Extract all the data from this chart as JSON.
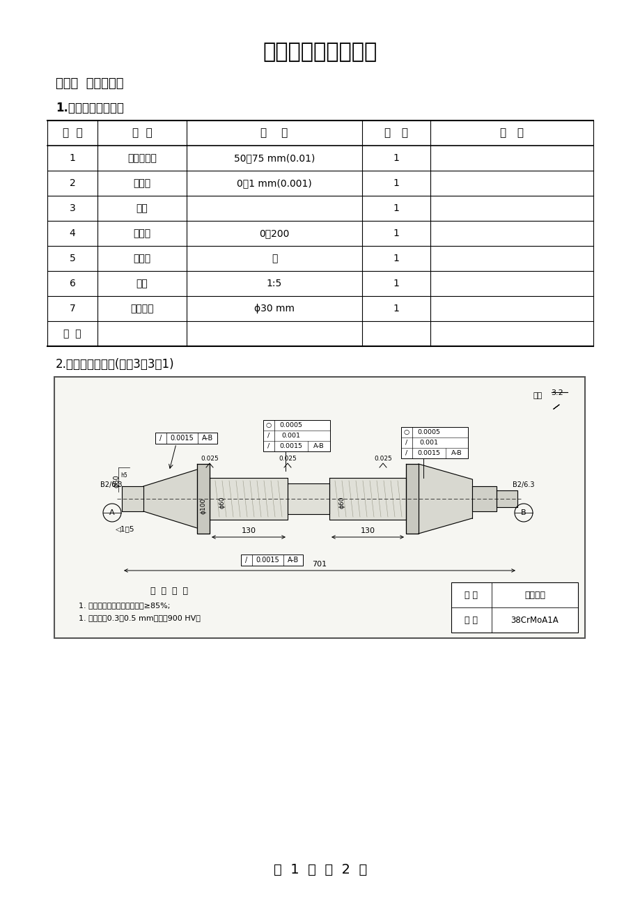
{
  "title": "高级磨床工技能试卷",
  "subject_label": "题目：  磨精密主轴",
  "section1_title": "1.工、量、刃具清单",
  "table_headers": [
    "序  号",
    "名  称",
    "规    格",
    "数   量",
    "备   注"
  ],
  "table_rows": [
    [
      "1",
      "外径百分尺",
      "50～75 mm(0.01)",
      "1",
      ""
    ],
    [
      "2",
      "千分表",
      "0～1 mm(0.001)",
      "1",
      ""
    ],
    [
      "3",
      "表座",
      "",
      "1",
      ""
    ],
    [
      "4",
      "深度尺",
      "0～200",
      "1",
      ""
    ],
    [
      "5",
      "红铅粉",
      "盒",
      "1",
      ""
    ],
    [
      "6",
      "环规",
      "1:5",
      "1",
      ""
    ],
    [
      "7",
      "鸡心夹头",
      "ϕ30 mm",
      "1",
      ""
    ],
    [
      "备  注",
      "",
      "",
      "",
      ""
    ]
  ],
  "section2_title": "2.精密主轴工作图(见图3－3－1)",
  "page_footer": "第  1  页  共  2  页",
  "bg_color": "#ffffff",
  "tech_line1": "1. 锥面用涂色法检验，接触面≥85%;",
  "tech_line2": "1. 渗氮深度0.3～0.5 mm，硬度900 HV。",
  "name_label": "名 称",
  "name_value": "精密主轴",
  "material_label": "材 料",
  "material_value": "38CrMoA1A"
}
